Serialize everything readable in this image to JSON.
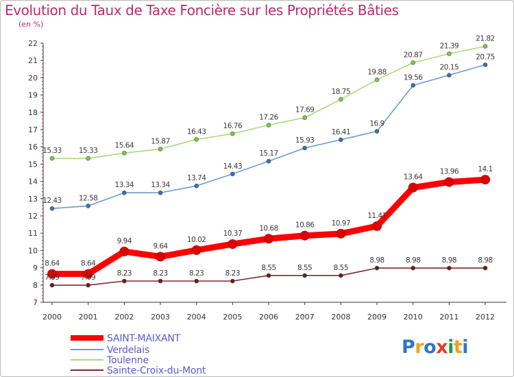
{
  "title": "Evolution du Taux de Taxe Foncière sur les Propriétés Bâties",
  "unit_label": "(en %)",
  "logo_text": "Proxiti",
  "chart_data": {
    "type": "line",
    "title": "Evolution du Taux de Taxe Foncière sur les Propriétés Bâties",
    "ylabel": "(en %)",
    "xlabel": "",
    "x": [
      "2000",
      "2001",
      "2002",
      "2003",
      "2004",
      "2005",
      "2006",
      "2007",
      "2008",
      "2009",
      "2010",
      "2011",
      "2012"
    ],
    "ylim": [
      7,
      22
    ],
    "yticks": [
      "7",
      "8",
      "9",
      "10",
      "11",
      "12",
      "13",
      "14",
      "15",
      "16",
      "17",
      "18",
      "19",
      "20",
      "21",
      "22"
    ],
    "grid": false,
    "legend_position": "bottom-left",
    "series": [
      {
        "name": "SAINT-MAIXANT",
        "color": "#ff0000",
        "marker": "#dd0000",
        "values": [
          8.64,
          8.64,
          9.94,
          9.64,
          10.02,
          10.37,
          10.68,
          10.86,
          10.97,
          11.41,
          13.64,
          13.96,
          14.1
        ],
        "labels": [
          "8.64",
          "8.64",
          "9.94",
          "9.64",
          "10.02",
          "10.37",
          "10.68",
          "10.86",
          "10.97",
          "11.41",
          "13.64",
          "13.96",
          "14.1"
        ]
      },
      {
        "name": "Verdelais",
        "color": "#6b9bd1",
        "marker": "#3b6fb6",
        "values": [
          12.43,
          12.58,
          13.34,
          13.34,
          13.74,
          14.43,
          15.17,
          15.93,
          16.41,
          16.9,
          19.56,
          20.15,
          20.75
        ],
        "labels": [
          "12.43",
          "12.58",
          "13.34",
          "13.34",
          "13.74",
          "14.43",
          "15.17",
          "15.93",
          "16.41",
          "16.9",
          "19.56",
          "20.15",
          "20.75"
        ]
      },
      {
        "name": "Toulenne",
        "color": "#a6dd7a",
        "marker": "#7ac943",
        "values": [
          15.33,
          15.33,
          15.64,
          15.87,
          16.43,
          16.76,
          17.26,
          17.69,
          18.75,
          19.88,
          20.87,
          21.39,
          21.82
        ],
        "labels": [
          "15.33",
          "15.33",
          "15.64",
          "15.87",
          "16.43",
          "16.76",
          "17.26",
          "17.69",
          "18.75",
          "19.88",
          "20.87",
          "21.39",
          "21.82"
        ]
      },
      {
        "name": "Sainte-Croix-du-Mont",
        "color": "#7a2a2a",
        "marker": "#6b1a1a",
        "values": [
          7.99,
          7.99,
          8.23,
          8.23,
          8.23,
          8.23,
          8.55,
          8.55,
          8.55,
          8.98,
          8.98,
          8.98,
          8.98
        ],
        "labels": [
          "7.99",
          "7.99",
          "8.23",
          "8.23",
          "8.23",
          "8.23",
          "8.55",
          "8.55",
          "8.55",
          "8.98",
          "8.98",
          "8.98",
          "8.98"
        ]
      }
    ]
  }
}
